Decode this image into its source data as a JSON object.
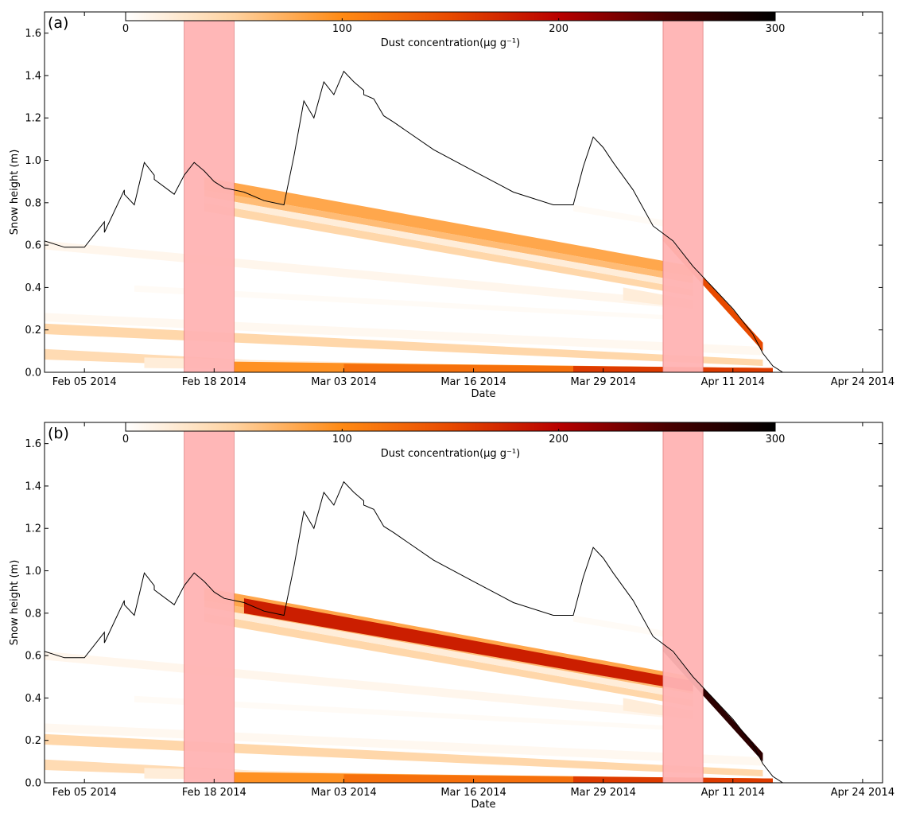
{
  "chart_data": [
    {
      "type": "area",
      "panel_label": "(a)",
      "xlabel": "Date",
      "ylabel": "Snow height (m)",
      "xlim": [
        "2014-02-01",
        "2014-04-26"
      ],
      "ylim": [
        0.0,
        1.7
      ],
      "x_ticks": [
        "2014-02-05",
        "2014-02-18",
        "2014-03-03",
        "2014-03-16",
        "2014-03-29",
        "2014-04-11",
        "2014-04-24"
      ],
      "x_tick_labels": [
        "Feb 05 2014",
        "Feb 18 2014",
        "Mar 03 2014",
        "Mar 16 2014",
        "Mar 29 2014",
        "Apr 11 2014",
        "Apr 24 2014"
      ],
      "y_ticks": [
        0.0,
        0.2,
        0.4,
        0.6,
        0.8,
        1.0,
        1.2,
        1.4,
        1.6
      ],
      "y_tick_labels": [
        "0.0",
        "0.2",
        "0.4",
        "0.6",
        "0.8",
        "1.0",
        "1.2",
        "1.4",
        "1.6"
      ],
      "colorbar": {
        "label": "Dust concentration(μg g⁻¹)",
        "range": [
          0,
          300
        ],
        "ticks": [
          0,
          100,
          200,
          300
        ],
        "tick_labels": [
          "0",
          "100",
          "200",
          "300"
        ],
        "colormap": [
          "#ffffff",
          "#ffd2a0",
          "#ff8a14",
          "#e84a00",
          "#b80000",
          "#4a0000",
          "#000000"
        ]
      },
      "shaded_periods": [
        [
          "2014-02-15",
          "2014-02-20"
        ],
        [
          "2014-04-04",
          "2014-04-08"
        ]
      ],
      "shade_color": "#ffb3b3",
      "snow_height": {
        "x": [
          "2014-02-01",
          "2014-02-03",
          "2014-02-05",
          "2014-02-07",
          "2014-02-07",
          "2014-02-09",
          "2014-02-09",
          "2014-02-10",
          "2014-02-11",
          "2014-02-12",
          "2014-02-12",
          "2014-02-14",
          "2014-02-15",
          "2014-02-16",
          "2014-02-17",
          "2014-02-18",
          "2014-02-19",
          "2014-02-21",
          "2014-02-23",
          "2014-02-25",
          "2014-02-26",
          "2014-02-27",
          "2014-02-28",
          "2014-03-01",
          "2014-03-02",
          "2014-03-03",
          "2014-03-04",
          "2014-03-05",
          "2014-03-05",
          "2014-03-06",
          "2014-03-07",
          "2014-03-08",
          "2014-03-12",
          "2014-03-16",
          "2014-03-20",
          "2014-03-24",
          "2014-03-26",
          "2014-03-27",
          "2014-03-28",
          "2014-03-29",
          "2014-03-30",
          "2014-04-01",
          "2014-04-03",
          "2014-04-05",
          "2014-04-07",
          "2014-04-09",
          "2014-04-11",
          "2014-04-13",
          "2014-04-14",
          "2014-04-15",
          "2014-04-16"
        ],
        "y": [
          0.62,
          0.59,
          0.59,
          0.71,
          0.66,
          0.86,
          0.84,
          0.79,
          0.99,
          0.93,
          0.91,
          0.84,
          0.93,
          0.99,
          0.95,
          0.9,
          0.87,
          0.85,
          0.81,
          0.79,
          1.02,
          1.28,
          1.2,
          1.37,
          1.31,
          1.42,
          1.37,
          1.33,
          1.31,
          1.29,
          1.21,
          1.18,
          1.05,
          0.95,
          0.85,
          0.79,
          0.79,
          0.97,
          1.11,
          1.06,
          0.99,
          0.86,
          0.69,
          0.62,
          0.5,
          0.4,
          0.3,
          0.18,
          0.09,
          0.03,
          0.0
        ]
      },
      "dust_layers": [
        {
          "x": [
            "2014-02-01",
            "2014-03-09"
          ],
          "bottom": [
            0.06,
            0.0
          ],
          "top": [
            0.11,
            0.02
          ],
          "value": 40
        },
        {
          "x": [
            "2014-02-11",
            "2014-03-20"
          ],
          "bottom": [
            0.02,
            0.0
          ],
          "top": [
            0.07,
            0.03
          ],
          "value": 20
        },
        {
          "x": [
            "2014-02-20",
            "2014-04-15"
          ],
          "bottom": [
            0.0,
            0.0
          ],
          "top": [
            0.05,
            0.02
          ],
          "value": 95
        },
        {
          "x": [
            "2014-03-03",
            "2014-04-15"
          ],
          "bottom": [
            0.0,
            0.0
          ],
          "top": [
            0.04,
            0.02
          ],
          "value": 120
        },
        {
          "x": [
            "2014-03-26",
            "2014-04-15"
          ],
          "bottom": [
            0.0,
            0.0
          ],
          "top": [
            0.03,
            0.02
          ],
          "value": 160
        },
        {
          "x": [
            "2014-02-01",
            "2014-04-14"
          ],
          "bottom": [
            0.18,
            0.03
          ],
          "top": [
            0.23,
            0.06
          ],
          "value": 45
        },
        {
          "x": [
            "2014-02-01",
            "2014-04-14"
          ],
          "bottom": [
            0.24,
            0.08
          ],
          "top": [
            0.28,
            0.12
          ],
          "value": 8
        },
        {
          "x": [
            "2014-02-01",
            "2014-04-06"
          ],
          "bottom": [
            0.58,
            0.3
          ],
          "top": [
            0.62,
            0.34
          ],
          "value": 10
        },
        {
          "x": [
            "2014-02-10",
            "2014-04-08"
          ],
          "bottom": [
            0.38,
            0.24
          ],
          "top": [
            0.41,
            0.26
          ],
          "value": 5
        },
        {
          "x": [
            "2014-02-17",
            "2014-04-07"
          ],
          "bottom": [
            0.83,
            0.42
          ],
          "top": [
            0.86,
            0.45
          ],
          "value": 65
        },
        {
          "x": [
            "2014-02-17",
            "2014-04-07"
          ],
          "bottom": [
            0.76,
            0.36
          ],
          "top": [
            0.8,
            0.39
          ],
          "value": 45
        },
        {
          "x": [
            "2014-02-17",
            "2014-04-07"
          ],
          "bottom": [
            0.8,
            0.39
          ],
          "top": [
            0.83,
            0.42
          ],
          "value": 20
        },
        {
          "x": [
            "2014-02-17",
            "2014-04-07"
          ],
          "bottom": [
            0.86,
            0.45
          ],
          "top": [
            0.92,
            0.5
          ],
          "value": 80
        },
        {
          "x": [
            "2014-03-31",
            "2014-04-07"
          ],
          "bottom": [
            0.34,
            0.3
          ],
          "top": [
            0.4,
            0.34
          ],
          "value": 20
        },
        {
          "x": [
            "2014-03-26",
            "2014-04-05"
          ],
          "bottom": [
            0.76,
            0.68
          ],
          "top": [
            0.79,
            0.71
          ],
          "value": 5
        },
        {
          "x": [
            "2014-04-04",
            "2014-04-14"
          ],
          "bottom": [
            0.62,
            0.1
          ],
          "top": [
            0.66,
            0.14
          ],
          "value": 150
        }
      ]
    },
    {
      "type": "area",
      "panel_label": "(b)",
      "xlabel": "Date",
      "ylabel": "Snow height (m)",
      "xlim": [
        "2014-02-01",
        "2014-04-26"
      ],
      "ylim": [
        0.0,
        1.7
      ],
      "x_ticks": [
        "2014-02-05",
        "2014-02-18",
        "2014-03-03",
        "2014-03-16",
        "2014-03-29",
        "2014-04-11",
        "2014-04-24"
      ],
      "x_tick_labels": [
        "Feb 05 2014",
        "Feb 18 2014",
        "Mar 03 2014",
        "Mar 16 2014",
        "Mar 29 2014",
        "Apr 11 2014",
        "Apr 24 2014"
      ],
      "y_ticks": [
        0.0,
        0.2,
        0.4,
        0.6,
        0.8,
        1.0,
        1.2,
        1.4,
        1.6
      ],
      "y_tick_labels": [
        "0.0",
        "0.2",
        "0.4",
        "0.6",
        "0.8",
        "1.0",
        "1.2",
        "1.4",
        "1.6"
      ],
      "colorbar": {
        "label": "Dust concentration(μg g⁻¹)",
        "range": [
          0,
          300
        ],
        "ticks": [
          0,
          100,
          200,
          300
        ],
        "tick_labels": [
          "0",
          "100",
          "200",
          "300"
        ],
        "colormap": [
          "#ffffff",
          "#ffd2a0",
          "#ff8a14",
          "#e84a00",
          "#b80000",
          "#4a0000",
          "#000000"
        ]
      },
      "shaded_periods": [
        [
          "2014-02-15",
          "2014-02-20"
        ],
        [
          "2014-04-04",
          "2014-04-08"
        ]
      ],
      "shade_color": "#ffb3b3",
      "snow_height": {
        "x": [
          "2014-02-01",
          "2014-02-03",
          "2014-02-05",
          "2014-02-07",
          "2014-02-07",
          "2014-02-09",
          "2014-02-09",
          "2014-02-10",
          "2014-02-11",
          "2014-02-12",
          "2014-02-12",
          "2014-02-14",
          "2014-02-15",
          "2014-02-16",
          "2014-02-17",
          "2014-02-18",
          "2014-02-19",
          "2014-02-21",
          "2014-02-23",
          "2014-02-25",
          "2014-02-26",
          "2014-02-27",
          "2014-02-28",
          "2014-03-01",
          "2014-03-02",
          "2014-03-03",
          "2014-03-04",
          "2014-03-05",
          "2014-03-05",
          "2014-03-06",
          "2014-03-07",
          "2014-03-08",
          "2014-03-12",
          "2014-03-16",
          "2014-03-20",
          "2014-03-24",
          "2014-03-26",
          "2014-03-27",
          "2014-03-28",
          "2014-03-29",
          "2014-03-30",
          "2014-04-01",
          "2014-04-03",
          "2014-04-05",
          "2014-04-07",
          "2014-04-09",
          "2014-04-11",
          "2014-04-13",
          "2014-04-14",
          "2014-04-15",
          "2014-04-16"
        ],
        "y": [
          0.62,
          0.59,
          0.59,
          0.71,
          0.66,
          0.86,
          0.84,
          0.79,
          0.99,
          0.93,
          0.91,
          0.84,
          0.93,
          0.99,
          0.95,
          0.9,
          0.87,
          0.85,
          0.81,
          0.79,
          1.02,
          1.28,
          1.2,
          1.37,
          1.31,
          1.42,
          1.37,
          1.33,
          1.31,
          1.29,
          1.21,
          1.18,
          1.05,
          0.95,
          0.85,
          0.79,
          0.79,
          0.97,
          1.11,
          1.06,
          0.99,
          0.86,
          0.69,
          0.62,
          0.5,
          0.4,
          0.3,
          0.18,
          0.09,
          0.03,
          0.0
        ]
      },
      "dust_layers": [
        {
          "x": [
            "2014-02-01",
            "2014-03-09"
          ],
          "bottom": [
            0.06,
            0.0
          ],
          "top": [
            0.11,
            0.02
          ],
          "value": 40
        },
        {
          "x": [
            "2014-02-11",
            "2014-03-20"
          ],
          "bottom": [
            0.02,
            0.0
          ],
          "top": [
            0.07,
            0.03
          ],
          "value": 20
        },
        {
          "x": [
            "2014-02-20",
            "2014-04-15"
          ],
          "bottom": [
            0.0,
            0.0
          ],
          "top": [
            0.05,
            0.02
          ],
          "value": 95
        },
        {
          "x": [
            "2014-03-03",
            "2014-04-15"
          ],
          "bottom": [
            0.0,
            0.0
          ],
          "top": [
            0.04,
            0.02
          ],
          "value": 120
        },
        {
          "x": [
            "2014-03-26",
            "2014-04-15"
          ],
          "bottom": [
            0.0,
            0.0
          ],
          "top": [
            0.03,
            0.02
          ],
          "value": 160
        },
        {
          "x": [
            "2014-02-01",
            "2014-04-14"
          ],
          "bottom": [
            0.18,
            0.03
          ],
          "top": [
            0.23,
            0.06
          ],
          "value": 45
        },
        {
          "x": [
            "2014-02-01",
            "2014-04-14"
          ],
          "bottom": [
            0.24,
            0.08
          ],
          "top": [
            0.28,
            0.12
          ],
          "value": 8
        },
        {
          "x": [
            "2014-02-01",
            "2014-04-06"
          ],
          "bottom": [
            0.58,
            0.3
          ],
          "top": [
            0.62,
            0.34
          ],
          "value": 10
        },
        {
          "x": [
            "2014-02-10",
            "2014-04-08"
          ],
          "bottom": [
            0.38,
            0.24
          ],
          "top": [
            0.41,
            0.26
          ],
          "value": 5
        },
        {
          "x": [
            "2014-02-17",
            "2014-04-07"
          ],
          "bottom": [
            0.76,
            0.36
          ],
          "top": [
            0.8,
            0.39
          ],
          "value": 45
        },
        {
          "x": [
            "2014-02-17",
            "2014-04-07"
          ],
          "bottom": [
            0.8,
            0.39
          ],
          "top": [
            0.83,
            0.42
          ],
          "value": 20
        },
        {
          "x": [
            "2014-02-17",
            "2014-04-07"
          ],
          "bottom": [
            0.83,
            0.42
          ],
          "top": [
            0.86,
            0.45
          ],
          "value": 65
        },
        {
          "x": [
            "2014-02-17",
            "2014-04-07"
          ],
          "bottom": [
            0.86,
            0.45
          ],
          "top": [
            0.92,
            0.5
          ],
          "value": 80
        },
        {
          "x": [
            "2014-02-21",
            "2014-04-07"
          ],
          "bottom": [
            0.8,
            0.43
          ],
          "top": [
            0.87,
            0.48
          ],
          "value": 180
        },
        {
          "x": [
            "2014-03-31",
            "2014-04-07"
          ],
          "bottom": [
            0.34,
            0.3
          ],
          "top": [
            0.4,
            0.34
          ],
          "value": 20
        },
        {
          "x": [
            "2014-03-26",
            "2014-04-05"
          ],
          "bottom": [
            0.76,
            0.68
          ],
          "top": [
            0.79,
            0.71
          ],
          "value": 5
        },
        {
          "x": [
            "2014-04-04",
            "2014-04-14"
          ],
          "bottom": [
            0.62,
            0.1
          ],
          "top": [
            0.66,
            0.14
          ],
          "value": 270
        }
      ]
    }
  ]
}
